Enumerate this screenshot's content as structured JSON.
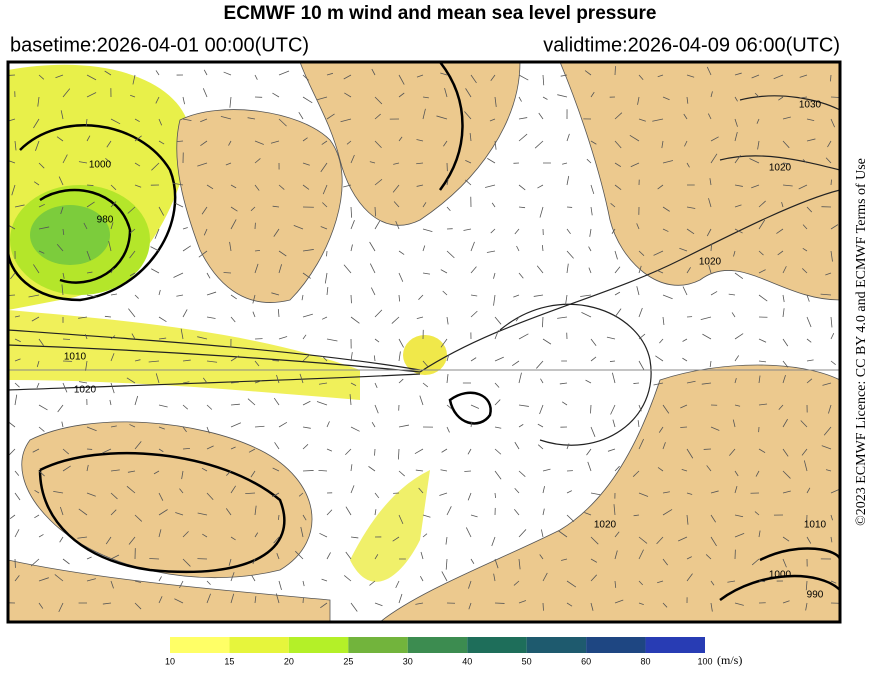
{
  "header": {
    "title": "ECMWF 10 m wind and mean sea level pressure",
    "basetime": "basetime:2026-04-01 00:00(UTC)",
    "validtime": "validtime:2026-04-09 06:00(UTC)"
  },
  "licence": "©2023 ECMWF Licence: CC BY 4.0 and ECMWF Terms of Use",
  "map": {
    "isobar_labels": [
      1000,
      980,
      1010,
      1020,
      1030,
      1020,
      1020,
      1020,
      1010,
      1000,
      990
    ]
  },
  "colorbar": {
    "ticks": [
      10,
      15,
      20,
      25,
      30,
      40,
      50,
      60,
      80,
      100
    ],
    "colors": [
      "#ffff66",
      "#e6f53c",
      "#b4f028",
      "#72b43c",
      "#3c8c50",
      "#1e6e5a",
      "#1e5a6e",
      "#1e4682",
      "#283cb4"
    ],
    "unit": "(m/s)"
  }
}
